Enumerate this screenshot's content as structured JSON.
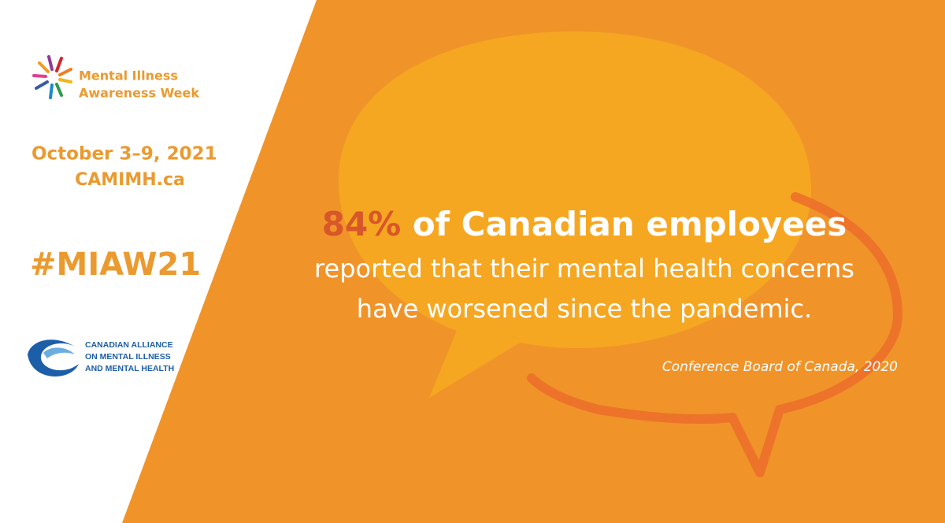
{
  "logo": {
    "lines": [
      "Mental Illness",
      "Awareness Week"
    ]
  },
  "event": {
    "dates": "October 3–9, 2021",
    "website": "CAMIMH.ca",
    "hashtag": "#MIAW21"
  },
  "organization": {
    "lines": [
      "CANADIAN ALLIANCE",
      "ON MENTAL ILLNESS",
      "AND MENTAL HEALTH"
    ]
  },
  "statement": {
    "highlight": "84%",
    "headline": "of Canadian employees",
    "body": [
      "reported that their mental health concerns",
      "have worsened since the pandemic."
    ],
    "source": "Conference Board of  Canada, 2020"
  }
}
